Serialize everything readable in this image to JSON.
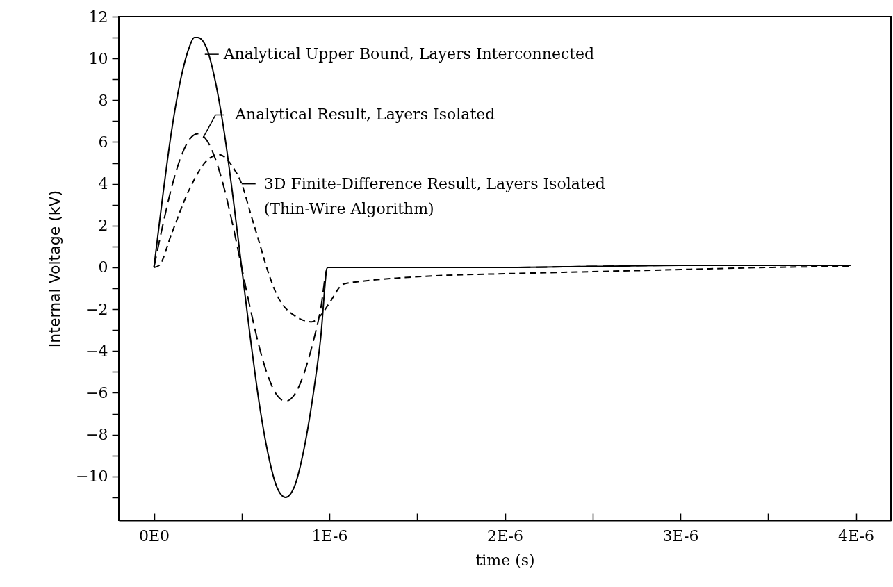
{
  "chart_data": {
    "type": "line",
    "xlabel": "time (s)",
    "ylabel": "Internal Voltage (kV)",
    "xlim": [
      -2e-07,
      4.2e-06
    ],
    "ylim": [
      -12.1,
      12
    ],
    "xticks": [
      {
        "value": 0,
        "label": "0E0"
      },
      {
        "value": 5e-07,
        "label": null
      },
      {
        "value": 1e-06,
        "label": "1E-6"
      },
      {
        "value": 1.5e-06,
        "label": null
      },
      {
        "value": 2e-06,
        "label": "2E-6"
      },
      {
        "value": 2.5e-06,
        "label": null
      },
      {
        "value": 3e-06,
        "label": "3E-6"
      },
      {
        "value": 3.5e-06,
        "label": null
      },
      {
        "value": 4e-06,
        "label": "4E-6"
      }
    ],
    "yticks": [
      {
        "value": -11,
        "label": null
      },
      -10,
      {
        "value": -9,
        "label": null
      },
      -8,
      {
        "value": -7,
        "label": null
      },
      -6,
      {
        "value": -5,
        "label": null
      },
      -4,
      {
        "value": -3,
        "label": null
      },
      -2,
      {
        "value": -1,
        "label": null
      },
      0,
      {
        "value": 1,
        "label": null
      },
      2,
      {
        "value": 3,
        "label": null
      },
      4,
      {
        "value": 5,
        "label": null
      },
      6,
      {
        "value": 7,
        "label": null
      },
      8,
      {
        "value": 9,
        "label": null
      },
      10,
      {
        "value": 11,
        "label": null
      },
      12
    ],
    "grid": false,
    "marker": "none",
    "series": [
      {
        "color": "#000000",
        "line_style": "solid",
        "x": [
          0,
          5e-08,
          1e-07,
          1.5e-07,
          2e-07,
          2.3e-07,
          2.5e-07,
          3e-07,
          3.5e-07,
          4e-07,
          4.5e-07,
          5e-07,
          5.5e-07,
          6e-07,
          6.5e-07,
          7e-07,
          7.5e-07,
          8e-07,
          8.5e-07,
          9e-07,
          9.5e-07,
          9.9e-07,
          1.5e-06,
          2e-06,
          2.5e-06,
          3e-06,
          3.5e-06,
          3.97e-06
        ],
        "values": [
          0,
          3.4,
          6.5,
          8.9,
          10.5,
          11,
          11,
          10.5,
          8.9,
          6.5,
          3.4,
          0,
          -3.4,
          -6.5,
          -8.9,
          -10.5,
          -11,
          -10.5,
          -8.9,
          -6.5,
          -3.4,
          0,
          0,
          0,
          0.05,
          0.1,
          0.1,
          0.1
        ]
      },
      {
        "color": "#000000",
        "line_style": "dashed",
        "x": [
          0,
          5e-08,
          1e-07,
          1.5e-07,
          2e-07,
          2.5e-07,
          3e-07,
          3.5e-07,
          4e-07,
          4.5e-07,
          5e-07,
          5.5e-07,
          6e-07,
          6.5e-07,
          7e-07,
          7.5e-07,
          8e-07,
          8.5e-07,
          9e-07,
          9.5e-07,
          9.9e-07,
          1.5e-06,
          2e-06,
          2.5e-06,
          3e-06,
          3.5e-06,
          3.97e-06
        ],
        "values": [
          0,
          2,
          3.8,
          5.2,
          6.1,
          6.4,
          6.1,
          5.2,
          3.8,
          2,
          0,
          -2,
          -3.8,
          -5.2,
          -6.1,
          -6.4,
          -6.1,
          -5.2,
          -3.8,
          -2,
          0,
          0,
          0,
          0.05,
          0.1,
          0.1,
          0.1
        ]
      },
      {
        "color": "#000000",
        "line_style": "dashed",
        "x": [
          0,
          3e-08,
          1e-07,
          2e-07,
          3e-07,
          3.7e-07,
          4.5e-07,
          5e-07,
          5.5e-07,
          6e-07,
          6.5e-07,
          7e-07,
          8e-07,
          9e-07,
          9.5e-07,
          1e-06,
          1.08e-06,
          1.2e-06,
          1.4e-06,
          1.6e-06,
          2e-06,
          2.5e-06,
          3e-06,
          3.5e-06,
          3.97e-06
        ],
        "values": [
          0,
          0.1,
          1.6,
          3.7,
          5.1,
          5.4,
          4.8,
          4,
          2.6,
          1.2,
          -0.2,
          -1.3,
          -2.3,
          -2.6,
          -2.3,
          -1.7,
          -0.8,
          -0.65,
          -0.5,
          -0.4,
          -0.3,
          -0.2,
          -0.1,
          0,
          0.05
        ]
      }
    ],
    "annotations": [
      {
        "text": "Analytical Upper Bound, Layers Interconnected",
        "x": 2.9e-07,
        "y": 10.2
      },
      {
        "text": "Analytical Result, Layers Isolated",
        "x": 2.8e-07,
        "y": 6.2
      },
      {
        "text": "3D Finite-Difference Result, Layers Isolated\n(Thin-Wire Algorithm)",
        "x": 5e-07,
        "y": 4
      }
    ]
  }
}
